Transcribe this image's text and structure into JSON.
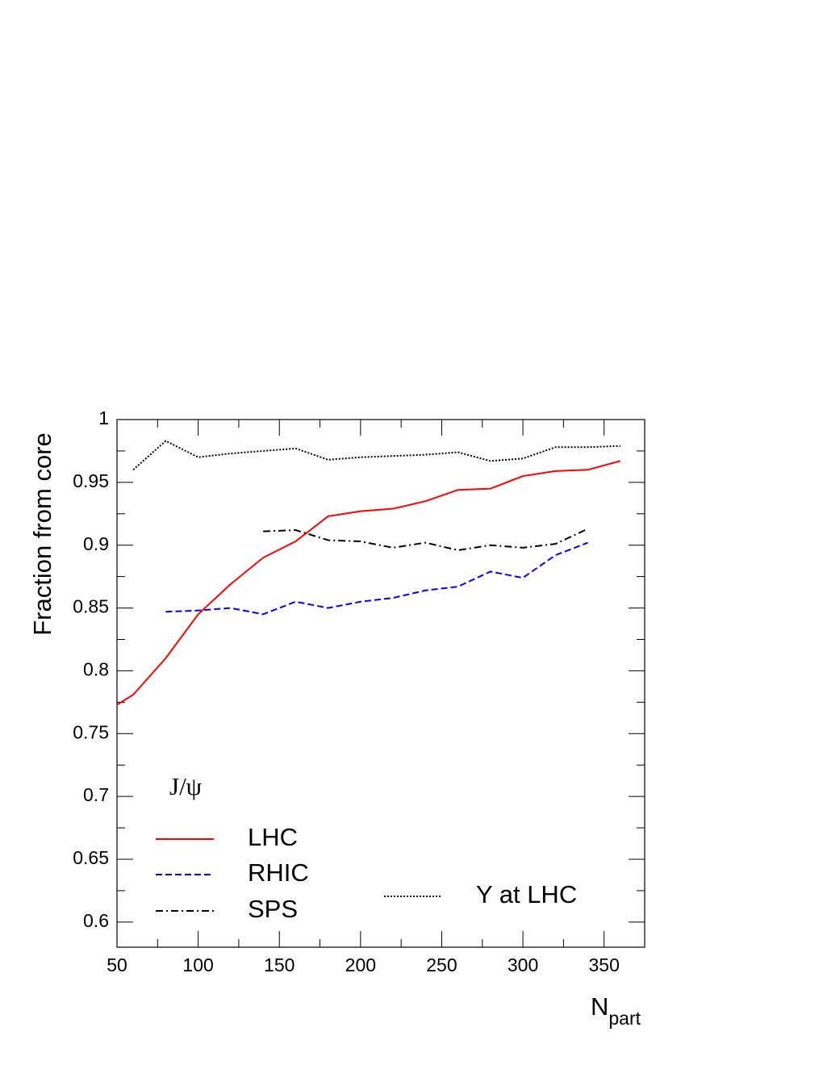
{
  "chart_data": {
    "type": "line",
    "ylabel": "Fraction from core",
    "xlabel": {
      "main": "N",
      "sub": "part"
    },
    "legend_title": "J/ψ",
    "xlim": [
      50,
      375
    ],
    "ylim": [
      0.58,
      1
    ],
    "xticks": [
      50,
      100,
      150,
      200,
      250,
      300,
      350
    ],
    "yticks": [
      0.6,
      0.65,
      0.7,
      0.75,
      0.8,
      0.85,
      0.9,
      0.95,
      1
    ],
    "xminorticks": [
      75,
      125,
      175,
      225,
      275,
      325
    ],
    "yminorticks": [
      0.625,
      0.675,
      0.725,
      0.775,
      0.825,
      0.875,
      0.925,
      0.975
    ],
    "grid": false,
    "series": [
      {
        "name": "LHC",
        "color": "#ff0000",
        "style": "solid",
        "x": [
          50,
          60,
          80,
          100,
          120,
          140,
          160,
          180,
          200,
          220,
          240,
          260,
          280,
          300,
          320,
          340,
          360
        ],
        "values": [
          0.773,
          0.781,
          0.81,
          0.845,
          0.869,
          0.89,
          0.903,
          0.923,
          0.927,
          0.929,
          0.935,
          0.944,
          0.945,
          0.955,
          0.959,
          0.96,
          0.967
        ]
      },
      {
        "name": "RHIC",
        "color": "#0000ff",
        "style": "dashed",
        "x": [
          80,
          100,
          120,
          140,
          160,
          180,
          200,
          220,
          240,
          260,
          280,
          300,
          320,
          340
        ],
        "values": [
          0.847,
          0.848,
          0.85,
          0.845,
          0.855,
          0.85,
          0.855,
          0.858,
          0.864,
          0.867,
          0.879,
          0.874,
          0.892,
          0.902
        ]
      },
      {
        "name": "SPS",
        "color": "#000000",
        "style": "dashdot",
        "x": [
          140,
          160,
          180,
          200,
          220,
          240,
          260,
          280,
          300,
          320,
          340
        ],
        "values": [
          0.911,
          0.912,
          0.904,
          0.903,
          0.898,
          0.902,
          0.896,
          0.9,
          0.898,
          0.901,
          0.913
        ]
      },
      {
        "name": "Υ at LHC",
        "color": "#000000",
        "style": "dotted",
        "x": [
          60,
          80,
          100,
          120,
          140,
          160,
          180,
          200,
          220,
          240,
          260,
          280,
          300,
          320,
          340,
          360
        ],
        "values": [
          0.96,
          0.983,
          0.97,
          0.973,
          0.975,
          0.977,
          0.968,
          0.97,
          0.971,
          0.972,
          0.974,
          0.967,
          0.969,
          0.978,
          0.978,
          0.979
        ]
      }
    ]
  }
}
